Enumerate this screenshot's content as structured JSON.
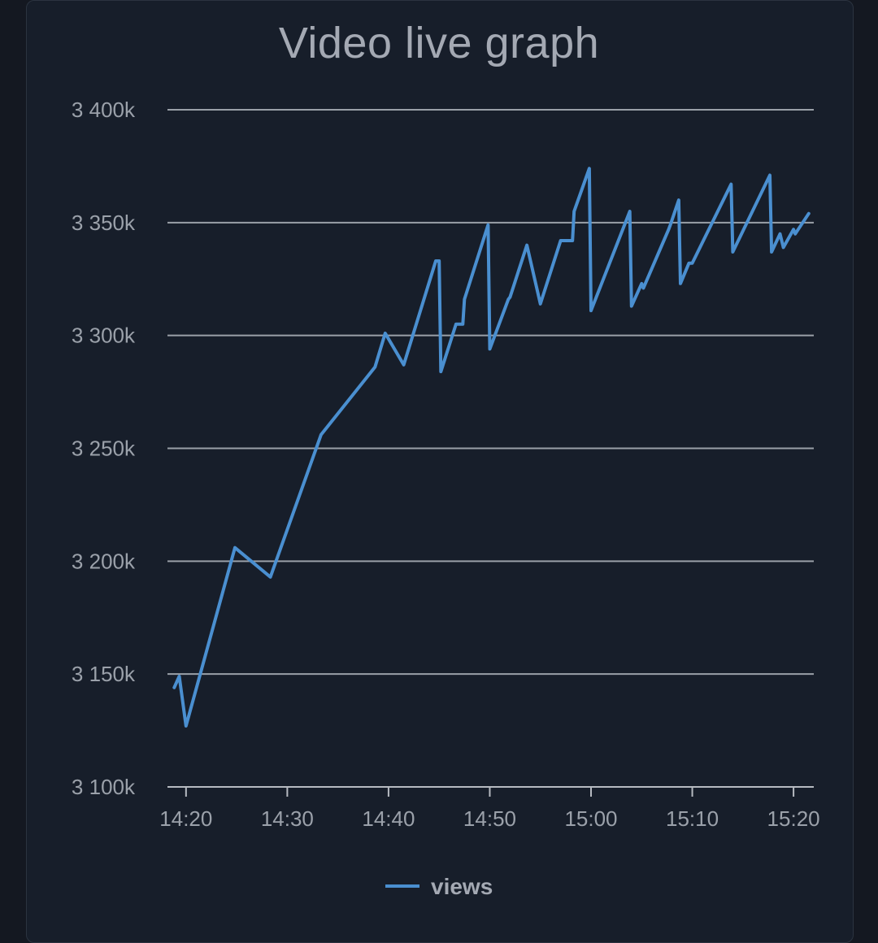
{
  "chart_data": {
    "type": "line",
    "title": "Video live graph",
    "xlabel": "",
    "ylabel": "",
    "ylim": [
      3100000,
      3400000
    ],
    "y_ticks": [
      {
        "value": 3100000,
        "label": "3 100k"
      },
      {
        "value": 3150000,
        "label": "3 150k"
      },
      {
        "value": 3200000,
        "label": "3 200k"
      },
      {
        "value": 3250000,
        "label": "3 250k"
      },
      {
        "value": 3300000,
        "label": "3 300k"
      },
      {
        "value": 3350000,
        "label": "3 350k"
      },
      {
        "value": 3400000,
        "label": "3 400k"
      }
    ],
    "xlim": [
      "14:18:10",
      "15:22:00"
    ],
    "x_ticks": [
      "14:20",
      "14:30",
      "14:40",
      "14:50",
      "15:00",
      "15:10",
      "15:20"
    ],
    "grid": true,
    "legend": "bottom-center",
    "series": [
      {
        "name": "views",
        "color": "#4a8fd0",
        "points": [
          [
            "14:18:50",
            3144000
          ],
          [
            "14:19:20",
            3149000
          ],
          [
            "14:20:00",
            3127000
          ],
          [
            "14:24:50",
            3206000
          ],
          [
            "14:28:20",
            3193000
          ],
          [
            "14:33:20",
            3256000
          ],
          [
            "14:38:40",
            3286000
          ],
          [
            "14:39:40",
            3301000
          ],
          [
            "14:41:30",
            3287000
          ],
          [
            "14:44:40",
            3333000
          ],
          [
            "14:45:00",
            3333000
          ],
          [
            "14:45:10",
            3284000
          ],
          [
            "14:46:40",
            3305000
          ],
          [
            "14:47:20",
            3305000
          ],
          [
            "14:47:30",
            3316000
          ],
          [
            "14:49:50",
            3349000
          ],
          [
            "14:50:00",
            3294000
          ],
          [
            "14:51:50",
            3316000
          ],
          [
            "14:52:00",
            3317000
          ],
          [
            "14:53:40",
            3340000
          ],
          [
            "14:55:00",
            3314000
          ],
          [
            "14:57:00",
            3342000
          ],
          [
            "14:58:10",
            3342000
          ],
          [
            "14:58:20",
            3355000
          ],
          [
            "14:59:50",
            3374000
          ],
          [
            "15:00:00",
            3311000
          ],
          [
            "15:03:50",
            3355000
          ],
          [
            "15:04:00",
            3313000
          ],
          [
            "15:05:00",
            3323000
          ],
          [
            "15:05:10",
            3321000
          ],
          [
            "15:07:40",
            3347000
          ],
          [
            "15:07:50",
            3349000
          ],
          [
            "15:08:40",
            3360000
          ],
          [
            "15:08:50",
            3323000
          ],
          [
            "15:09:40",
            3332000
          ],
          [
            "15:10:00",
            3332000
          ],
          [
            "15:13:50",
            3367000
          ],
          [
            "15:14:00",
            3337000
          ],
          [
            "15:17:40",
            3371000
          ],
          [
            "15:17:50",
            3337000
          ],
          [
            "15:18:40",
            3345000
          ],
          [
            "15:19:00",
            3339000
          ],
          [
            "15:20:00",
            3347000
          ],
          [
            "15:20:10",
            3345000
          ],
          [
            "15:21:30",
            3354000
          ]
        ]
      }
    ]
  }
}
